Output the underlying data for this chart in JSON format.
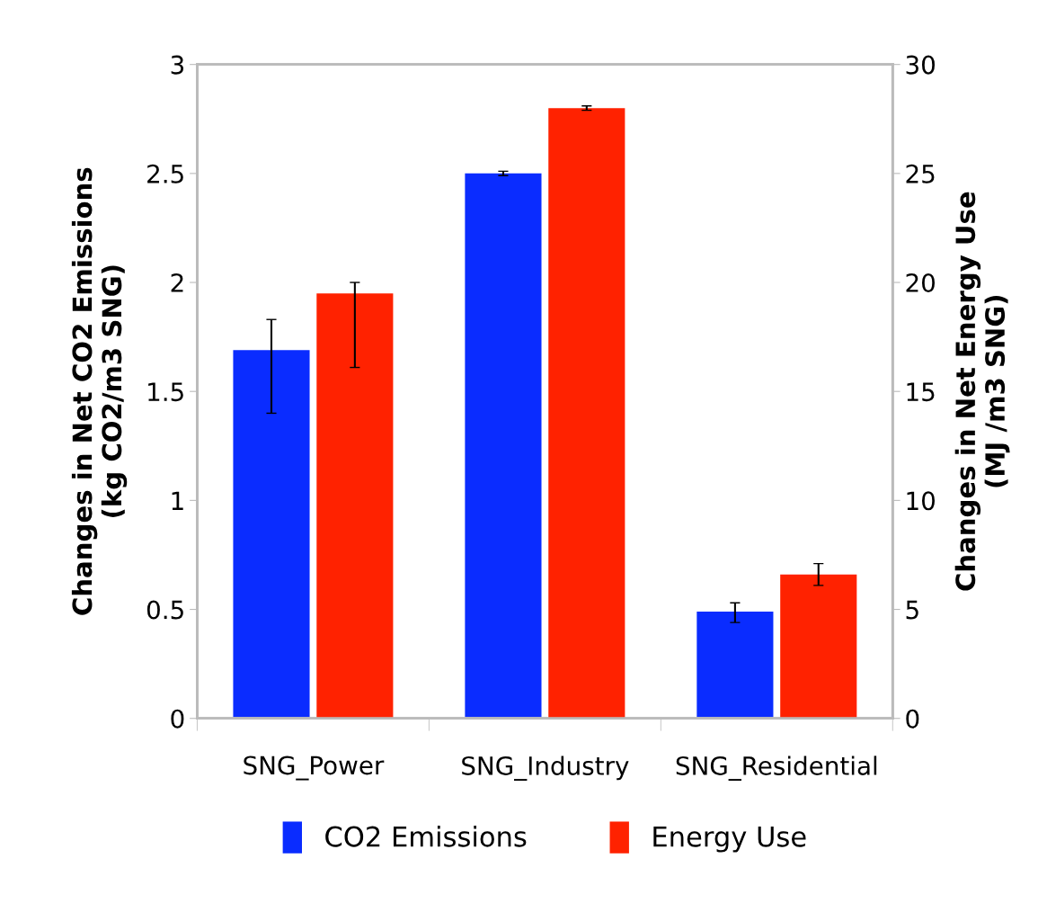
{
  "chart_data": {
    "type": "bar",
    "categories": [
      "SNG_Power",
      "SNG_Industry",
      "SNG_Residential"
    ],
    "ylabel": "Changes in Net CO2 Emissions\n(kg CO2/m3 SNG)",
    "y2label": "Changes in Net Energy Use\n(MJ /m3 SNG)",
    "ylim": [
      0,
      3
    ],
    "yticks": [
      0,
      0.5,
      1,
      1.5,
      2,
      2.5,
      3
    ],
    "y2lim": [
      0,
      30
    ],
    "y2ticks": [
      0,
      5,
      10,
      15,
      20,
      25,
      30
    ],
    "series": [
      {
        "name": "CO2 Emissions",
        "color": "#0a2cff",
        "values": [
          1.69,
          2.5,
          0.49
        ],
        "errors": [
          [
            1.4,
            1.83
          ],
          [
            2.49,
            2.51
          ],
          [
            0.44,
            0.53
          ]
        ]
      },
      {
        "name": "Energy Use",
        "color": "#ff2200",
        "axis": "y2",
        "values": [
          19.5,
          28.0,
          6.6
        ],
        "errors": [
          [
            16.1,
            20.0
          ],
          [
            27.9,
            28.1
          ],
          [
            6.1,
            7.1
          ]
        ]
      }
    ],
    "grid": false,
    "legend": "bottom"
  }
}
